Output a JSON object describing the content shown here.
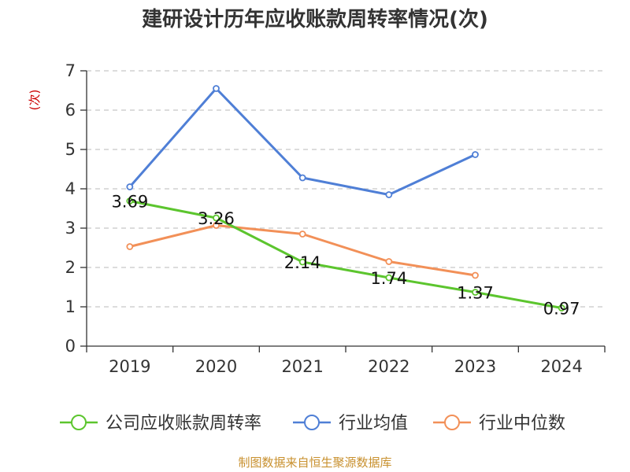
{
  "chart_data": {
    "type": "line",
    "title": "建研设计历年应收账款周转率情况(次)",
    "ylabel": "(次)",
    "xlabel": "",
    "categories": [
      "2019",
      "2020",
      "2021",
      "2022",
      "2023",
      "2024"
    ],
    "ylim": [
      0,
      7
    ],
    "yticks": [
      "0",
      "1",
      "2",
      "3",
      "4",
      "5",
      "6",
      "7"
    ],
    "grid": true,
    "legend_position": "bottom",
    "series": [
      {
        "name": "公司应收账款周转率",
        "color": "#5cc52e",
        "values": [
          3.69,
          3.26,
          2.14,
          1.74,
          1.37,
          0.97
        ],
        "labels": [
          "3.69",
          "3.26",
          "2.14",
          "1.74",
          "1.37",
          "0.97"
        ]
      },
      {
        "name": "行业均值",
        "color": "#4f7fd6",
        "values": [
          4.05,
          6.55,
          4.28,
          3.85,
          4.87,
          null
        ]
      },
      {
        "name": "行业中位数",
        "color": "#f29058",
        "values": [
          2.53,
          3.07,
          2.85,
          2.15,
          1.8,
          null
        ]
      }
    ],
    "source": "制图数据来自恒生聚源数据库"
  }
}
